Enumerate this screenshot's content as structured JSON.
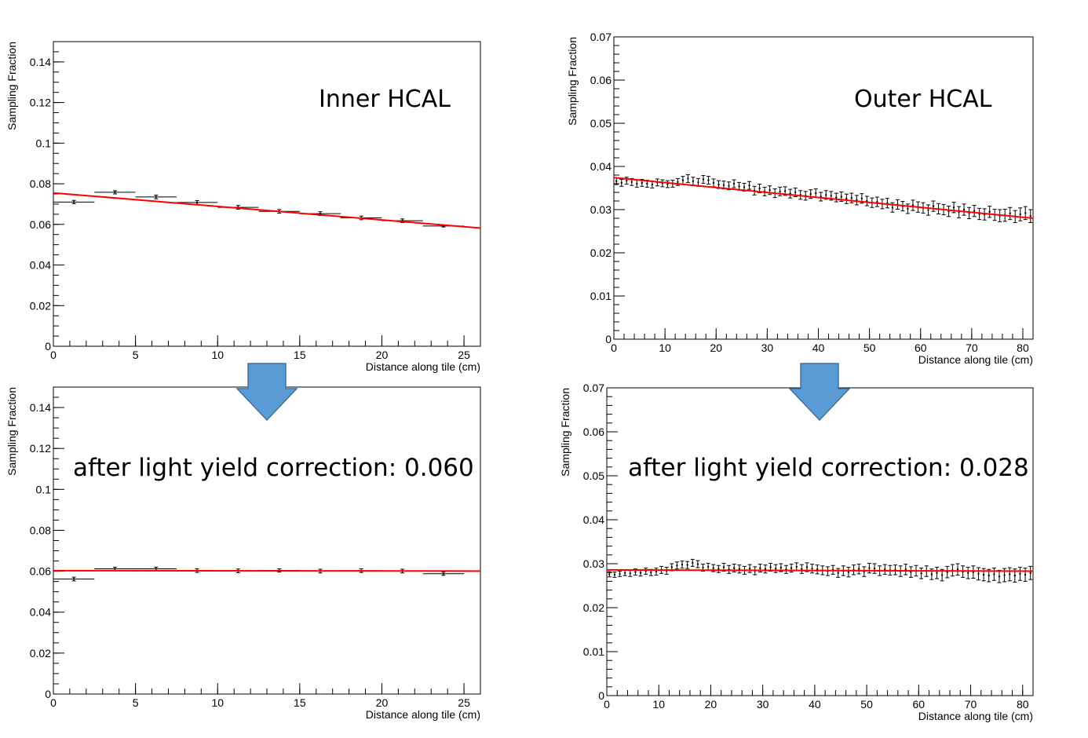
{
  "colors": {
    "fit": "#ff0000",
    "points": "#000000",
    "arrow_fill": "#5b9bd5",
    "arrow_stroke": "#41719c",
    "frame": "#000000"
  },
  "arrow_icon": "down-arrow-icon",
  "chart_data": [
    {
      "id": "inner-before",
      "type": "scatter",
      "annotation": "Inner HCAL",
      "xlabel": "Distance along tile (cm)",
      "ylabel": "Sampling Fraction",
      "xlim": [
        0,
        26
      ],
      "ylim": [
        0,
        0.15
      ],
      "xticks": [
        0,
        5,
        10,
        15,
        20,
        25
      ],
      "xtick_labels": [
        "0",
        "5",
        "10",
        "15",
        "20",
        "25"
      ],
      "yticks": [
        0,
        0.02,
        0.04,
        0.06,
        0.08,
        0.1,
        0.12,
        0.14
      ],
      "ytick_labels": [
        "0",
        "0.02",
        "0.04",
        "0.06",
        "0.08",
        "0.1",
        "0.12",
        "0.14"
      ],
      "xminor": 1,
      "yminor": 0.005,
      "grid": false,
      "series": [
        {
          "x": [
            1.25,
            3.75,
            6.25,
            8.75,
            11.25,
            13.75,
            16.25,
            18.75,
            21.25,
            23.75
          ],
          "y": [
            0.071,
            0.0758,
            0.0735,
            0.0708,
            0.0684,
            0.0664,
            0.0653,
            0.0632,
            0.0618,
            0.0592
          ],
          "xerr": [
            1.25,
            1.25,
            1.25,
            1.25,
            1.25,
            1.25,
            1.25,
            1.25,
            1.25,
            1.25
          ],
          "yerr": [
            0.0008,
            0.0008,
            0.0009,
            0.0009,
            0.0009,
            0.0009,
            0.0009,
            0.0009,
            0.0009,
            0.0005
          ]
        }
      ],
      "fit": {
        "x": [
          0,
          26
        ],
        "y": [
          0.0755,
          0.0582
        ]
      }
    },
    {
      "id": "outer-before",
      "type": "scatter",
      "annotation": "Outer HCAL",
      "xlabel": "Distance along tile (cm)",
      "ylabel": "Sampling Fraction",
      "xlim": [
        0,
        82
      ],
      "ylim": [
        0,
        0.07
      ],
      "xticks": [
        0,
        10,
        20,
        30,
        40,
        50,
        60,
        70,
        80
      ],
      "xtick_labels": [
        "0",
        "10",
        "20",
        "30",
        "40",
        "50",
        "60",
        "70",
        "80"
      ],
      "yticks": [
        0,
        0.01,
        0.02,
        0.03,
        0.04,
        0.05,
        0.06,
        0.07
      ],
      "ytick_labels": [
        "0",
        "0.01",
        "0.02",
        "0.03",
        "0.04",
        "0.05",
        "0.06",
        "0.07"
      ],
      "xminor": 2,
      "yminor": 0.002,
      "grid": false,
      "series": [
        {
          "x": [
            0.5,
            1.5,
            2.5,
            3.5,
            4.5,
            5.5,
            6.5,
            7.5,
            8.5,
            9.5,
            10.5,
            11.5,
            12.5,
            13.5,
            14.5,
            15.5,
            16.5,
            17.5,
            18.5,
            19.5,
            20.5,
            21.5,
            22.5,
            23.5,
            24.5,
            25.5,
            26.5,
            27.5,
            28.5,
            29.5,
            30.5,
            31.5,
            32.5,
            33.5,
            34.5,
            35.5,
            36.5,
            37.5,
            38.5,
            39.5,
            40.5,
            41.5,
            42.5,
            43.5,
            44.5,
            45.5,
            46.5,
            47.5,
            48.5,
            49.5,
            50.5,
            51.5,
            52.5,
            53.5,
            54.5,
            55.5,
            56.5,
            57.5,
            58.5,
            59.5,
            60.5,
            61.5,
            62.5,
            63.5,
            64.5,
            65.5,
            66.5,
            67.5,
            68.5,
            69.5,
            70.5,
            71.5,
            72.5,
            73.5,
            74.5,
            75.5,
            76.5,
            77.5,
            78.5,
            79.5,
            80.5,
            81.5
          ],
          "y": [
            0.0366,
            0.0362,
            0.0367,
            0.0364,
            0.036,
            0.0362,
            0.036,
            0.0358,
            0.0363,
            0.0361,
            0.0359,
            0.036,
            0.0364,
            0.0368,
            0.0372,
            0.0366,
            0.0363,
            0.037,
            0.0368,
            0.0362,
            0.0358,
            0.0357,
            0.0355,
            0.036,
            0.0354,
            0.0352,
            0.0356,
            0.0344,
            0.0349,
            0.0342,
            0.0345,
            0.0338,
            0.0342,
            0.0343,
            0.0337,
            0.034,
            0.0334,
            0.0332,
            0.0336,
            0.0338,
            0.033,
            0.0334,
            0.0332,
            0.0328,
            0.033,
            0.0325,
            0.0327,
            0.0322,
            0.0326,
            0.032,
            0.0316,
            0.0318,
            0.0313,
            0.0315,
            0.0305,
            0.0312,
            0.0308,
            0.0302,
            0.031,
            0.0306,
            0.0304,
            0.0299,
            0.0308,
            0.0302,
            0.03,
            0.0296,
            0.0305,
            0.0294,
            0.03,
            0.0292,
            0.0297,
            0.029,
            0.0289,
            0.0295,
            0.0288,
            0.0286,
            0.0287,
            0.0291,
            0.0284,
            0.0289,
            0.0292,
            0.0285
          ],
          "yerr": [
            0.0008,
            0.0008,
            0.0008,
            0.0008,
            0.0008,
            0.0008,
            0.0008,
            0.0008,
            0.0008,
            0.0008,
            0.0008,
            0.0008,
            0.0008,
            0.0009,
            0.0009,
            0.0009,
            0.0009,
            0.0009,
            0.0009,
            0.0009,
            0.0009,
            0.0009,
            0.0009,
            0.0009,
            0.0009,
            0.0009,
            0.0009,
            0.001,
            0.001,
            0.001,
            0.001,
            0.001,
            0.001,
            0.001,
            0.001,
            0.001,
            0.001,
            0.001,
            0.001,
            0.001,
            0.001,
            0.001,
            0.001,
            0.001,
            0.0011,
            0.0011,
            0.0011,
            0.0011,
            0.0011,
            0.0011,
            0.0011,
            0.0011,
            0.0011,
            0.0011,
            0.0011,
            0.0011,
            0.0011,
            0.0011,
            0.0012,
            0.0012,
            0.0012,
            0.0012,
            0.0012,
            0.0012,
            0.0012,
            0.0012,
            0.0012,
            0.0013,
            0.0013,
            0.0013,
            0.0013,
            0.0013,
            0.0013,
            0.0013,
            0.0013,
            0.0014,
            0.0014,
            0.0014,
            0.0014,
            0.0015,
            0.0015,
            0.0015
          ]
        }
      ],
      "fit": {
        "x": [
          0,
          82
        ],
        "y": [
          0.0374,
          0.028
        ]
      }
    },
    {
      "id": "inner-after",
      "type": "scatter",
      "annotation": "after light yield correction: 0.060",
      "xlabel": "Distance along tile (cm)",
      "ylabel": "Sampling Fraction",
      "xlim": [
        0,
        26
      ],
      "ylim": [
        0,
        0.15
      ],
      "xticks": [
        0,
        5,
        10,
        15,
        20,
        25
      ],
      "xtick_labels": [
        "0",
        "5",
        "10",
        "15",
        "20",
        "25"
      ],
      "yticks": [
        0,
        0.02,
        0.04,
        0.06,
        0.08,
        0.1,
        0.12,
        0.14
      ],
      "ytick_labels": [
        "0",
        "0.02",
        "0.04",
        "0.06",
        "0.08",
        "0.1",
        "0.12",
        "0.14"
      ],
      "xminor": 1,
      "yminor": 0.005,
      "grid": false,
      "series": [
        {
          "x": [
            1.25,
            3.75,
            6.25,
            8.75,
            11.25,
            13.75,
            16.25,
            18.75,
            21.25,
            23.75
          ],
          "y": [
            0.0562,
            0.0612,
            0.0612,
            0.0603,
            0.0602,
            0.0604,
            0.0601,
            0.0603,
            0.0601,
            0.0588
          ],
          "xerr": [
            1.25,
            1.25,
            1.25,
            1.25,
            1.25,
            1.25,
            1.25,
            1.25,
            1.25,
            1.25
          ],
          "yerr": [
            0.0009,
            0.0008,
            0.0008,
            0.0009,
            0.0009,
            0.0008,
            0.0009,
            0.0009,
            0.0009,
            0.0008
          ]
        }
      ],
      "fit": {
        "x": [
          0,
          26
        ],
        "y": [
          0.0603,
          0.0601
        ]
      }
    },
    {
      "id": "outer-after",
      "type": "scatter",
      "annotation": "after light yield correction: 0.028",
      "xlabel": "Distance along tile (cm)",
      "ylabel": "Sampling Fraction",
      "xlim": [
        0,
        82
      ],
      "ylim": [
        0,
        0.07
      ],
      "xticks": [
        0,
        10,
        20,
        30,
        40,
        50,
        60,
        70,
        80
      ],
      "xtick_labels": [
        "0",
        "10",
        "20",
        "30",
        "40",
        "50",
        "60",
        "70",
        "80"
      ],
      "yticks": [
        0,
        0.01,
        0.02,
        0.03,
        0.04,
        0.05,
        0.06,
        0.07
      ],
      "ytick_labels": [
        "0",
        "0.01",
        "0.02",
        "0.03",
        "0.04",
        "0.05",
        "0.06",
        "0.07"
      ],
      "xminor": 2,
      "yminor": 0.002,
      "grid": false,
      "series": [
        {
          "x": [
            0.5,
            1.5,
            2.5,
            3.5,
            4.5,
            5.5,
            6.5,
            7.5,
            8.5,
            9.5,
            10.5,
            11.5,
            12.5,
            13.5,
            14.5,
            15.5,
            16.5,
            17.5,
            18.5,
            19.5,
            20.5,
            21.5,
            22.5,
            23.5,
            24.5,
            25.5,
            26.5,
            27.5,
            28.5,
            29.5,
            30.5,
            31.5,
            32.5,
            33.5,
            34.5,
            35.5,
            36.5,
            37.5,
            38.5,
            39.5,
            40.5,
            41.5,
            42.5,
            43.5,
            44.5,
            45.5,
            46.5,
            47.5,
            48.5,
            49.5,
            50.5,
            51.5,
            52.5,
            53.5,
            54.5,
            55.5,
            56.5,
            57.5,
            58.5,
            59.5,
            60.5,
            61.5,
            62.5,
            63.5,
            64.5,
            65.5,
            66.5,
            67.5,
            68.5,
            69.5,
            70.5,
            71.5,
            72.5,
            73.5,
            74.5,
            75.5,
            76.5,
            77.5,
            78.5,
            79.5,
            80.5,
            81.5
          ],
          "y": [
            0.0276,
            0.0275,
            0.0277,
            0.0279,
            0.0278,
            0.0281,
            0.0279,
            0.0283,
            0.028,
            0.0282,
            0.0286,
            0.0284,
            0.0292,
            0.0296,
            0.0298,
            0.0297,
            0.0302,
            0.0299,
            0.0291,
            0.0293,
            0.029,
            0.0288,
            0.0292,
            0.0287,
            0.029,
            0.0288,
            0.0285,
            0.0289,
            0.0284,
            0.029,
            0.0288,
            0.0292,
            0.0289,
            0.0291,
            0.0287,
            0.029,
            0.0293,
            0.0288,
            0.0292,
            0.0289,
            0.0287,
            0.0285,
            0.0283,
            0.0286,
            0.0279,
            0.0284,
            0.0281,
            0.0286,
            0.0288,
            0.0282,
            0.029,
            0.0289,
            0.0284,
            0.0287,
            0.0285,
            0.0286,
            0.0283,
            0.0287,
            0.0281,
            0.0284,
            0.0278,
            0.0283,
            0.0276,
            0.0279,
            0.0274,
            0.0281,
            0.0285,
            0.0287,
            0.0282,
            0.0279,
            0.0281,
            0.0277,
            0.0275,
            0.0273,
            0.0276,
            0.0271,
            0.0274,
            0.0276,
            0.0273,
            0.0277,
            0.0275,
            0.0279
          ],
          "yerr": [
            0.0006,
            0.0006,
            0.0006,
            0.0006,
            0.0007,
            0.0007,
            0.0007,
            0.0007,
            0.0007,
            0.0008,
            0.0008,
            0.0008,
            0.0008,
            0.0008,
            0.0008,
            0.0008,
            0.0008,
            0.0008,
            0.0008,
            0.0008,
            0.0008,
            0.0008,
            0.0009,
            0.0009,
            0.0009,
            0.0009,
            0.0009,
            0.0009,
            0.0009,
            0.0009,
            0.0009,
            0.0009,
            0.0009,
            0.0009,
            0.0009,
            0.0009,
            0.0009,
            0.001,
            0.001,
            0.001,
            0.001,
            0.001,
            0.001,
            0.001,
            0.001,
            0.0011,
            0.0011,
            0.0011,
            0.0011,
            0.0011,
            0.0011,
            0.0011,
            0.0011,
            0.0011,
            0.0011,
            0.0011,
            0.0012,
            0.0012,
            0.0012,
            0.0012,
            0.0012,
            0.0012,
            0.0012,
            0.0013,
            0.0013,
            0.0013,
            0.0013,
            0.0013,
            0.0013,
            0.0013,
            0.0014,
            0.0014,
            0.0014,
            0.0014,
            0.0014,
            0.0014,
            0.0015,
            0.0015,
            0.0015,
            0.0015,
            0.0015,
            0.0015
          ]
        }
      ],
      "fit": {
        "x": [
          0,
          82
        ],
        "y": [
          0.0286,
          0.0283
        ]
      }
    }
  ]
}
